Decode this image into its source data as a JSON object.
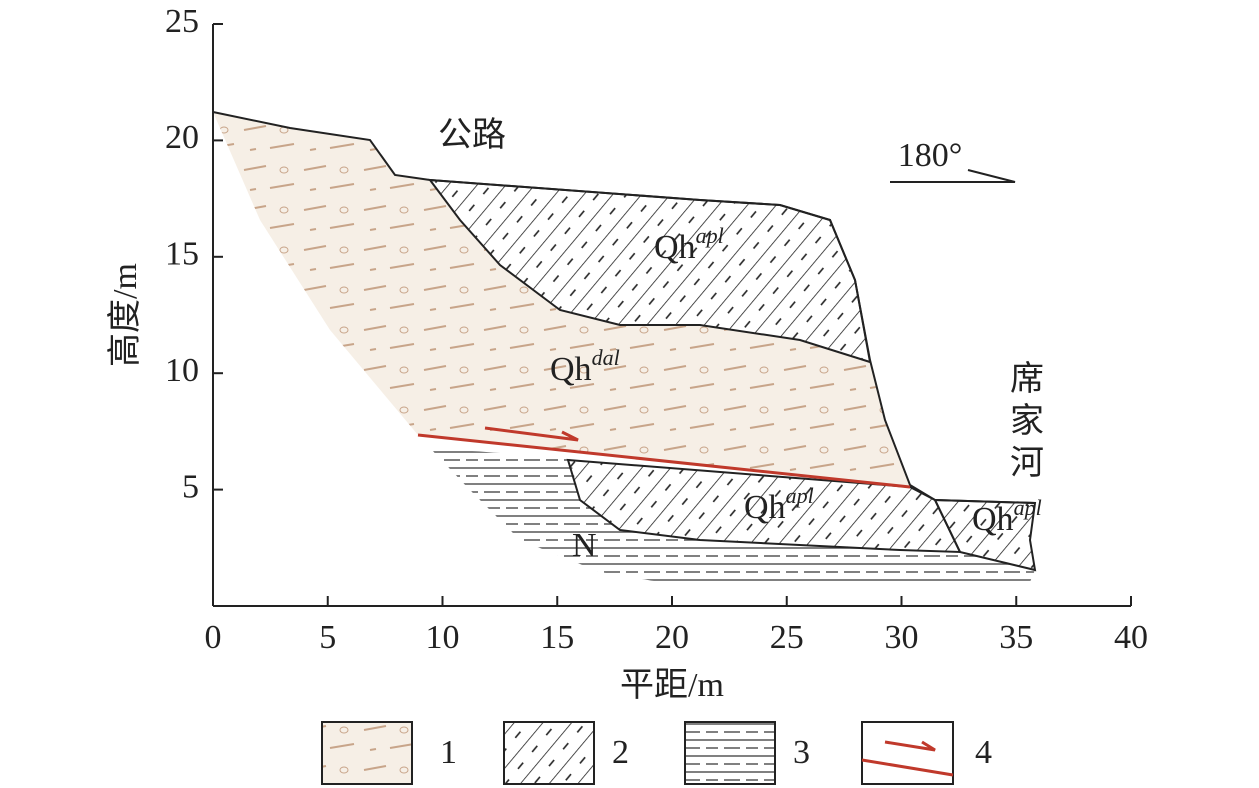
{
  "axes": {
    "x_label": "平距/m",
    "y_label": "高度/m",
    "xlim": [
      0,
      40
    ],
    "ylim": [
      0,
      25
    ],
    "xticks": [
      0,
      5,
      10,
      15,
      20,
      25,
      30,
      35,
      40
    ],
    "yticks": [
      5,
      10,
      15,
      20,
      25
    ]
  },
  "annotations": {
    "road": "公路",
    "river": "席家河",
    "direction": "180°",
    "units": [
      {
        "text": "Qh",
        "sup": "apl"
      },
      {
        "text": "Qh",
        "sup": "dal"
      },
      {
        "text": "Qh",
        "sup": "apl"
      },
      {
        "text": "Qh",
        "sup": "apl"
      },
      {
        "text": "N"
      }
    ]
  },
  "legend": [
    "1",
    "2",
    "3",
    "4"
  ]
}
